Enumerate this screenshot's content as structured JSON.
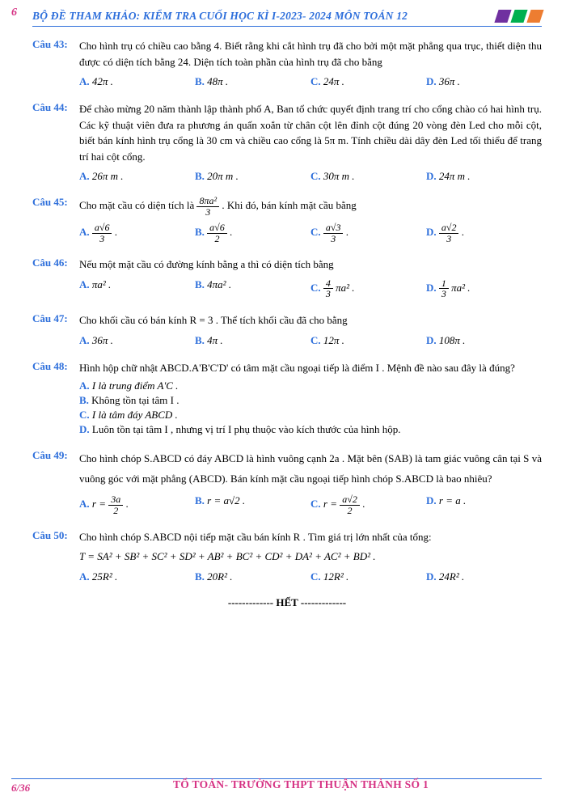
{
  "colors": {
    "blue": "#2e6fdb",
    "pink": "#d63384",
    "purple": "#7030a0",
    "green": "#00b050",
    "orange": "#ed7d31"
  },
  "pageNumTop": "6",
  "headerTitle": "BỘ ĐỀ THAM KHẢO: KIỂM TRA CUỐI HỌC KÌ I-2023- 2024 MÔN TOÁN 12",
  "q43": {
    "label": "Câu 43:",
    "t1": "Cho hình trụ có chiều cao bằng 4. Biết rằng khi cắt hình trụ đã cho bởi một mặt phẳng qua trục, thiết diện thu được có diện tích bằng 24. Diện tích toàn phần của hình trụ đã cho bằng",
    "A": "42π .",
    "B": "48π .",
    "C": "24π .",
    "D": "36π ."
  },
  "q44": {
    "label": "Câu 44:",
    "t1": "Để chào mừng 20 năm thành lập thành phố A, Ban tổ chức quyết định trang trí cho cổng chào có hai hình trụ. Các kỹ thuật viên đưa ra phương án quấn xoắn từ chân cột lên đỉnh cột đúng 20 vòng đèn Led cho mỗi cột, biết bán kính hình trụ cổng là 30 cm và chiều cao cổng là 5π m. Tính chiều dài dây đèn Led tối thiểu để trang trí hai cột cổng.",
    "A": "26π m .",
    "B": "20π m .",
    "C": "30π m .",
    "D": "24π m ."
  },
  "q45": {
    "label": "Câu 45:",
    "t_pre": "Cho mặt cầu có diện tích là ",
    "t_post": " . Khi đó, bán kính mặt cầu bằng",
    "frac_num": "8πa²",
    "frac_den": "3",
    "A_num": "a√6",
    "A_den": "3",
    "B_num": "a√6",
    "B_den": "2",
    "C_num": "a√3",
    "C_den": "3",
    "D_num": "a√2",
    "D_den": "3"
  },
  "q46": {
    "label": "Câu 46:",
    "t1": "Nếu một mặt cầu có đường kính bằng a thì có diện tích bằng",
    "A": "πa² .",
    "B": "4πa² .",
    "C_pre": "",
    "C_num": "4",
    "C_den": "3",
    "C_post": "πa² .",
    "D_num": "1",
    "D_den": "3",
    "D_post": "πa² ."
  },
  "q47": {
    "label": "Câu 47:",
    "t1": "Cho khối cầu có bán kính R = 3 . Thể tích khối cầu đã cho bằng",
    "A": "36π .",
    "B": "4π .",
    "C": "12π .",
    "D": "108π ."
  },
  "q48": {
    "label": "Câu 48:",
    "t1": "Hình hộp chữ nhật ABCD.A'B'C'D' có tâm mặt cầu ngoại tiếp là điểm I . Mệnh đề nào sau đây là đúng?",
    "A": "I là trung điểm A'C .",
    "B": "Không tồn tại tâm I .",
    "C": "I là tâm đáy ABCD .",
    "D": "Luôn tồn tại tâm I , nhưng vị trí I phụ thuộc vào kích thước của hình hộp."
  },
  "q49": {
    "label": "Câu 49:",
    "t1": "Cho hình chóp S.ABCD có đáy ABCD là hình vuông cạnh 2a . Mặt bên (SAB) là tam giác vuông cân tại S và vuông góc với mặt phẳng (ABCD). Bán kính mặt cầu ngoại tiếp hình chóp S.ABCD là bao nhiêu?",
    "A_pre": "r = ",
    "A_num": "3a",
    "A_den": "2",
    "B": "r = a√2 .",
    "C_pre": "r = ",
    "C_num": "a√2",
    "C_den": "2",
    "D": "r = a ."
  },
  "q50": {
    "label": "Câu 50:",
    "t1": "Cho hình chóp S.ABCD nội tiếp mặt cầu bán kính R . Tìm giá trị lớn nhất của tổng:",
    "t2": "T = SA² + SB² + SC² + SD² + AB² + BC² + CD² + DA² + AC² + BD² .",
    "A": "25R² .",
    "B": "20R² .",
    "C": "12R² .",
    "D": "24R² ."
  },
  "end": "HẾT",
  "footerLeft": "6/36",
  "footerCenter": "TỔ TOÁN- TRƯỜNG THPT THUẬN THÀNH SỐ 1"
}
